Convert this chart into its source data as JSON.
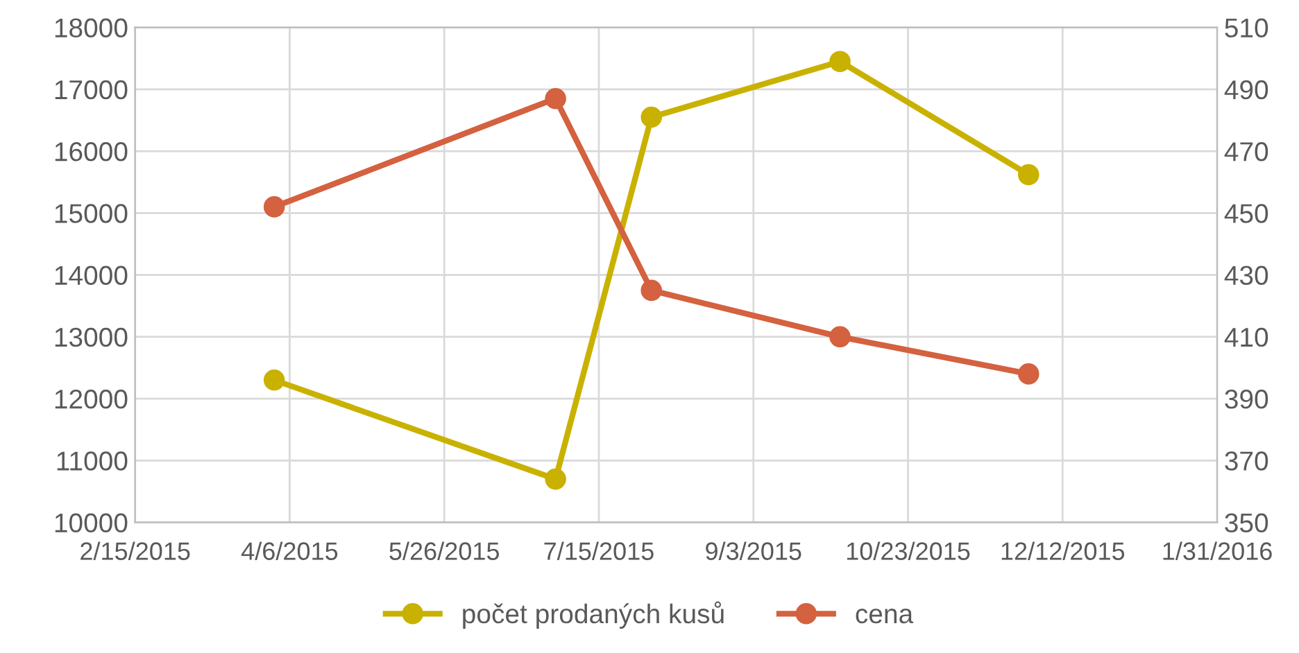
{
  "chart_data": {
    "type": "line",
    "x": [
      "2015-04-01",
      "2015-07-01",
      "2015-08-01",
      "2015-10-01",
      "2015-12-01"
    ],
    "series": [
      {
        "name": "počet prodaných kusů",
        "color": "#c9b100",
        "values": [
          12300,
          10700,
          16550,
          17450,
          15620
        ]
      },
      {
        "name": "cena",
        "color": "#d4613f",
        "axis": "y2",
        "values": [
          452,
          487,
          425,
          410,
          398
        ]
      }
    ],
    "xlim": [
      "2015-02-15",
      "2016-01-31"
    ],
    "xticks": [
      {
        "value": "2015-02-15",
        "label": "2/15/2015"
      },
      {
        "value": "2015-04-06",
        "label": "4/6/2015"
      },
      {
        "value": "2015-05-26",
        "label": "5/26/2015"
      },
      {
        "value": "2015-07-15",
        "label": "7/15/2015"
      },
      {
        "value": "2015-09-03",
        "label": "9/3/2015"
      },
      {
        "value": "2015-10-23",
        "label": "10/23/2015"
      },
      {
        "value": "2015-12-12",
        "label": "12/12/2015"
      },
      {
        "value": "2016-01-31",
        "label": "1/31/2016"
      }
    ],
    "ylim": [
      10000,
      18000
    ],
    "yticks": [
      10000,
      11000,
      12000,
      13000,
      14000,
      15000,
      16000,
      17000,
      18000
    ],
    "y2lim": [
      350,
      510
    ],
    "y2ticks": [
      350,
      370,
      390,
      410,
      430,
      450,
      470,
      490,
      510
    ],
    "grid": true,
    "legend": "bottom",
    "marker": "circle",
    "line_style": "solid"
  }
}
